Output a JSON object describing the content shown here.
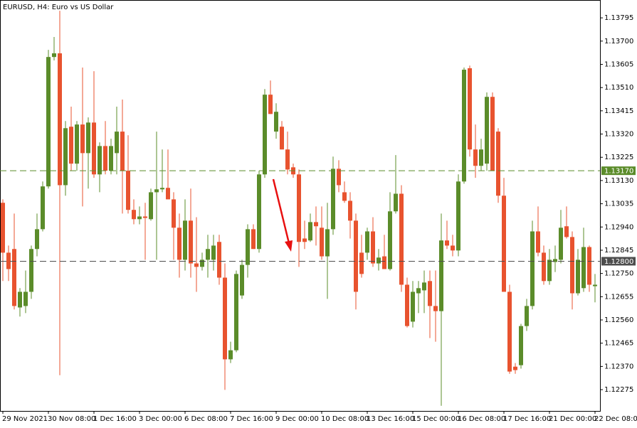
{
  "chart_data": {
    "type": "candlestick",
    "title": "EURUSD, H4:  Euro vs US Dollar",
    "categories": [
      "29 Nov 2021",
      null,
      null,
      null,
      null,
      null,
      null,
      null,
      "30 Nov 08:00",
      null,
      null,
      null,
      null,
      null,
      null,
      null,
      "1 Dec 16:00",
      null,
      null,
      null,
      null,
      null,
      null,
      null,
      "3 Dec 00:00",
      null,
      null,
      null,
      null,
      null,
      null,
      null,
      "6 Dec 08:00",
      null,
      null,
      null,
      null,
      null,
      null,
      null,
      "7 Dec 16:00",
      null,
      null,
      null,
      null,
      null,
      null,
      null,
      "9 Dec 00:00",
      null,
      null,
      null,
      null,
      null,
      null,
      null,
      "10 Dec 08:00",
      null,
      null,
      null,
      null,
      null,
      null,
      null,
      "13 Dec 16:00",
      null,
      null,
      null,
      null,
      null,
      null,
      null,
      "15 Dec 00:00",
      null,
      null,
      null,
      null,
      null,
      null,
      null,
      "16 Dec 08:00",
      null,
      null,
      null,
      null,
      null,
      null,
      null,
      "17 Dec 16:00",
      null,
      null,
      null,
      null,
      null,
      null,
      null,
      "21 Dec 00:00",
      null,
      null,
      null,
      null,
      null,
      null,
      null,
      "22 Dec 08:00"
    ],
    "open": [
      1.13039,
      1.12835,
      1.1285,
      1.12611,
      1.12617,
      1.12675,
      1.1285,
      1.12931,
      1.13106,
      1.13635,
      1.1365,
      1.13111,
      1.1335,
      1.13199,
      1.13359,
      1.13242,
      1.13367,
      1.13155,
      1.13271,
      1.1317,
      1.13242,
      1.1333,
      1.1317,
      1.1301,
      1.12972,
      1.12983,
      1.12972,
      1.13082,
      1.13094,
      1.131,
      1.13053,
      1.12937,
      1.12806,
      1.12966,
      1.12791,
      1.12777,
      1.12806,
      1.12806,
      1.12879,
      1.12733,
      1.12399,
      1.12436,
      1.1266,
      1.12785,
      1.12931,
      1.1285,
      1.13155,
      1.13481,
      1.1333,
      1.1335,
      1.13257,
      1.13184,
      1.13155,
      1.12893,
      1.12885,
      1.1296,
      1.12937,
      1.1282,
      1.12931,
      1.13178,
      1.13082,
      1.13047,
      1.12966,
      1.12835,
      1.12835,
      1.12922,
      1.12791,
      1.1282,
      1.12768,
      1.13004,
      1.13076,
      1.12704,
      1.12553,
      1.12669,
      1.12681,
      1.12719,
      1.12617,
      1.12596,
      1.12885,
      1.12864,
      1.12844,
      1.13126,
      1.13589,
      1.13257,
      1.1319,
      1.13199,
      1.13472,
      1.1333,
      1.13068,
      1.12675,
      1.12369,
      1.12375,
      1.12535,
      1.12617,
      1.12922,
      1.12835,
      1.12719,
      1.12797,
      1.12806,
      1.12943,
      1.12899,
      1.12669,
      1.1269,
      1.12858,
      1.12698
    ],
    "high": [
      1.13053,
      1.12864,
      1.12995,
      1.1269,
      1.12762,
      1.12864,
      1.12995,
      1.13126,
      1.13664,
      1.13717,
      1.13824,
      1.13373,
      1.13432,
      1.13373,
      1.13592,
      1.13388,
      1.13577,
      1.13286,
      1.13373,
      1.13301,
      1.13432,
      1.13461,
      1.13315,
      1.13053,
      1.13024,
      1.13039,
      1.13097,
      1.1333,
      1.13257,
      1.13257,
      1.13082,
      1.12995,
      1.13053,
      1.13097,
      1.1298,
      1.12835,
      1.12908,
      1.12908,
      1.12908,
      1.12791,
      1.12471,
      1.12762,
      1.12806,
      1.12951,
      1.12951,
      1.1317,
      1.13504,
      1.13539,
      1.13446,
      1.13373,
      1.1333,
      1.13199,
      1.13175,
      1.12966,
      1.12995,
      1.13024,
      1.13024,
      1.13039,
      1.13228,
      1.13213,
      1.13126,
      1.13082,
      1.12995,
      1.12908,
      1.12937,
      1.1298,
      1.1285,
      1.12908,
      1.13082,
      1.13234,
      1.13111,
      1.12733,
      1.12719,
      1.12719,
      1.12762,
      1.12762,
      1.12762,
      1.12995,
      1.12966,
      1.12908,
      1.13155,
      1.13592,
      1.136,
      1.13359,
      1.13301,
      1.1349,
      1.1349,
      1.13344,
      1.13141,
      1.12704,
      1.12384,
      1.12544,
      1.12646,
      1.12966,
      1.13024,
      1.12864,
      1.1285,
      1.12864,
      1.1301,
      1.13024,
      1.12922,
      1.1285,
      1.12937,
      1.12864,
      1.12748
    ],
    "low": [
      1.12719,
      1.12719,
      1.12603,
      1.12574,
      1.12588,
      1.12646,
      1.1282,
      1.12922,
      1.13097,
      1.13621,
      1.12334,
      1.13068,
      1.1317,
      1.1317,
      1.13024,
      1.13097,
      1.13141,
      1.13082,
      1.13155,
      1.13155,
      1.13155,
      1.12995,
      1.12995,
      1.12951,
      1.12951,
      1.12806,
      1.12966,
      1.12806,
      1.13082,
      1.13053,
      1.12806,
      1.12733,
      1.12762,
      1.12733,
      1.12675,
      1.12762,
      1.12733,
      1.12762,
      1.12704,
      1.12274,
      1.12384,
      1.12428,
      1.12646,
      1.12733,
      1.1285,
      1.12835,
      1.13141,
      1.13402,
      1.13301,
      1.13257,
      1.13155,
      1.13141,
      1.12777,
      1.1285,
      1.12879,
      1.12864,
      1.12806,
      1.12646,
      1.12908,
      1.13082,
      1.13039,
      1.12893,
      1.12603,
      1.12733,
      1.12806,
      1.12777,
      1.12762,
      1.12768,
      1.12762,
      1.12995,
      1.12675,
      1.12529,
      1.12529,
      1.12588,
      1.12588,
      1.12486,
      1.12471,
      1.12209,
      1.1285,
      1.1282,
      1.1282,
      1.13117,
      1.13228,
      1.13141,
      1.1317,
      1.1317,
      1.1317,
      1.13039,
      1.12675,
      1.1234,
      1.1234,
      1.12361,
      1.12515,
      1.12603,
      1.1282,
      1.12704,
      1.12704,
      1.12756,
      1.12791,
      1.12893,
      1.12603,
      1.1266,
      1.12675,
      1.12675,
      1.12632
    ],
    "close": [
      1.12835,
      1.12768,
      1.12617,
      1.12675,
      1.12675,
      1.1285,
      1.12931,
      1.13106,
      1.13635,
      1.1365,
      1.13111,
      1.13344,
      1.13199,
      1.13359,
      1.13242,
      1.13367,
      1.13155,
      1.13271,
      1.1317,
      1.13271,
      1.1333,
      1.1317,
      1.1301,
      1.12972,
      1.12983,
      1.12977,
      1.13082,
      1.13094,
      1.131,
      1.13053,
      1.12937,
      1.12806,
      1.12966,
      1.12791,
      1.12777,
      1.12806,
      1.1285,
      1.12864,
      1.12733,
      1.12399,
      1.12436,
      1.12748,
      1.12785,
      1.12931,
      1.1285,
      1.13155,
      1.13481,
      1.13402,
      1.13411,
      1.13257,
      1.13175,
      1.13155,
      1.12879,
      1.12879,
      1.1296,
      1.12943,
      1.1282,
      1.12931,
      1.13178,
      1.13111,
      1.13047,
      1.12966,
      1.12675,
      1.12748,
      1.12922,
      1.12791,
      1.12815,
      1.12768,
      1.13004,
      1.13076,
      1.12704,
      1.12535,
      1.12675,
      1.1269,
      1.12713,
      1.12617,
      1.12596,
      1.12885,
      1.12864,
      1.12844,
      1.13126,
      1.13583,
      1.13257,
      1.1319,
      1.13257,
      1.13472,
      1.1317,
      1.13068,
      1.12675,
      1.12349,
      1.12355,
      1.12535,
      1.12617,
      1.12922,
      1.12835,
      1.12719,
      1.12806,
      1.12809,
      1.12937,
      1.12899,
      1.12669,
      1.12806,
      1.12858,
      1.12704,
      1.12704
    ],
    "up_color": "#5b8c2a",
    "down_color": "#e8532f",
    "ylim": [
      1.12188,
      1.13868
    ],
    "yticks": [
      1.13795,
      {
        "value": 1.137,
        "label": "1.13700"
      },
      1.13605,
      {
        "value": 1.1351,
        "label": "1.13510"
      },
      1.13415,
      {
        "value": 1.1332,
        "label": "1.13320"
      },
      1.13225,
      {
        "value": 1.1313,
        "label": "1.13130"
      },
      1.13035,
      {
        "value": 1.1294,
        "label": "1.12940"
      },
      1.12845,
      {
        "value": 1.1275,
        "label": "1.12750"
      },
      1.12655,
      {
        "value": 1.1256,
        "label": "1.12560"
      },
      1.12465,
      {
        "value": 1.1237,
        "label": "1.12370"
      },
      1.12275
    ],
    "hlines": [
      {
        "value": 1.1317,
        "label": "1.13170",
        "color": "#5b8c2a"
      },
      {
        "value": 1.128,
        "label": "1.12800",
        "color": "#4d4d4d"
      }
    ],
    "grid": false
  }
}
